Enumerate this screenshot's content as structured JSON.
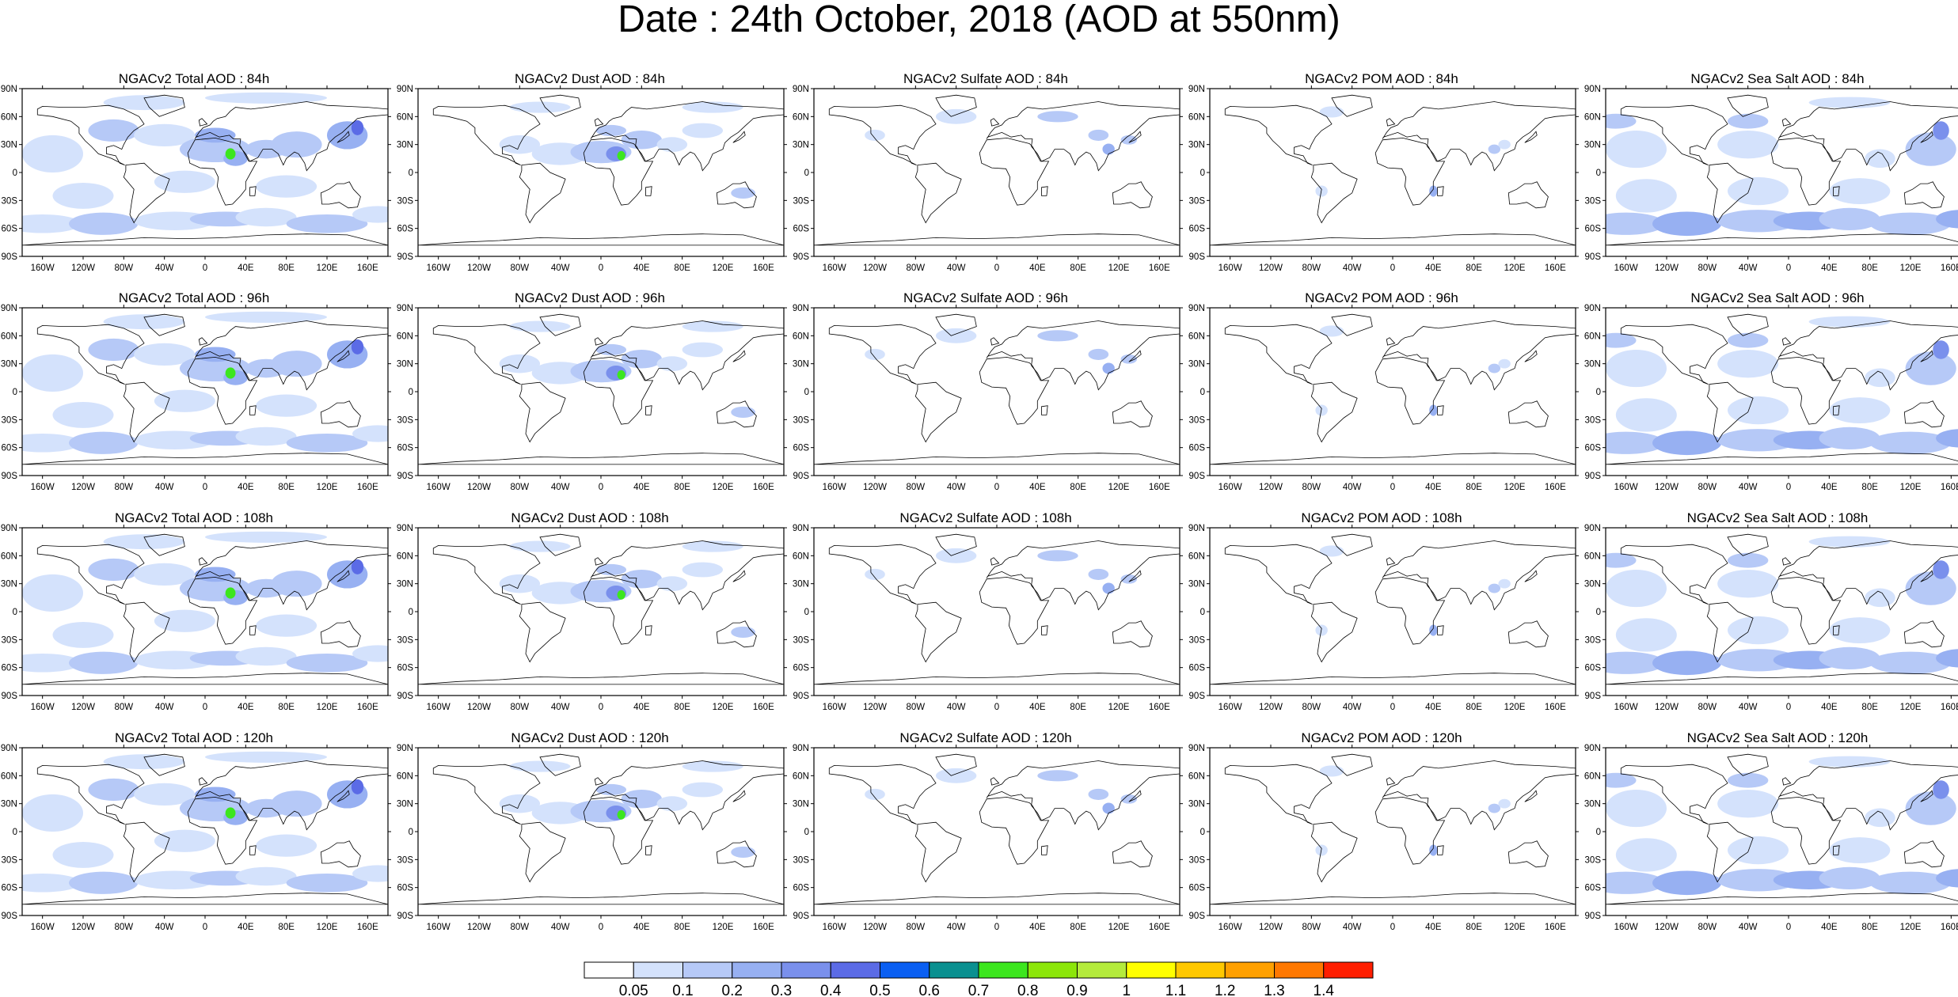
{
  "title": "Date : 24th October, 2018 (AOD at 550nm)",
  "map_axes": {
    "lat_ticks": [
      "90N",
      "60N",
      "30N",
      "0",
      "30S",
      "60S",
      "90S"
    ],
    "lon_ticks": [
      "160W",
      "120W",
      "80W",
      "40W",
      "0",
      "40E",
      "80E",
      "120E",
      "160E"
    ]
  },
  "panels": [
    {
      "title": "NGACv2 Total AOD : 84h",
      "species": "total",
      "forecast_hour": 84
    },
    {
      "title": "NGACv2 Dust AOD : 84h",
      "species": "dust",
      "forecast_hour": 84
    },
    {
      "title": "NGACv2 Sulfate AOD : 84h",
      "species": "sulfate",
      "forecast_hour": 84
    },
    {
      "title": "NGACv2 POM AOD : 84h",
      "species": "pom",
      "forecast_hour": 84
    },
    {
      "title": "NGACv2 Sea Salt AOD : 84h",
      "species": "seasalt",
      "forecast_hour": 84
    },
    {
      "title": "NGACv2 Total AOD : 96h",
      "species": "total",
      "forecast_hour": 96
    },
    {
      "title": "NGACv2 Dust AOD : 96h",
      "species": "dust",
      "forecast_hour": 96
    },
    {
      "title": "NGACv2 Sulfate AOD : 96h",
      "species": "sulfate",
      "forecast_hour": 96
    },
    {
      "title": "NGACv2 POM AOD : 96h",
      "species": "pom",
      "forecast_hour": 96
    },
    {
      "title": "NGACv2 Sea Salt AOD : 96h",
      "species": "seasalt",
      "forecast_hour": 96
    },
    {
      "title": "NGACv2 Total AOD : 108h",
      "species": "total",
      "forecast_hour": 108
    },
    {
      "title": "NGACv2 Dust AOD : 108h",
      "species": "dust",
      "forecast_hour": 108
    },
    {
      "title": "NGACv2 Sulfate AOD : 108h",
      "species": "sulfate",
      "forecast_hour": 108
    },
    {
      "title": "NGACv2 POM AOD : 108h",
      "species": "pom",
      "forecast_hour": 108
    },
    {
      "title": "NGACv2 Sea Salt AOD : 108h",
      "species": "seasalt",
      "forecast_hour": 108
    },
    {
      "title": "NGACv2 Total AOD : 120h",
      "species": "total",
      "forecast_hour": 120
    },
    {
      "title": "NGACv2 Dust AOD : 120h",
      "species": "dust",
      "forecast_hour": 120
    },
    {
      "title": "NGACv2 Sulfate AOD : 120h",
      "species": "sulfate",
      "forecast_hour": 120
    },
    {
      "title": "NGACv2 POM AOD : 120h",
      "species": "pom",
      "forecast_hour": 120
    },
    {
      "title": "NGACv2 Sea Salt  AOD : 120h",
      "species": "seasalt",
      "forecast_hour": 120
    }
  ],
  "colorbar": {
    "labels": [
      "0.05",
      "0.1",
      "0.2",
      "0.3",
      "0.4",
      "0.5",
      "0.6",
      "0.7",
      "0.8",
      "0.9",
      "1",
      "1.1",
      "1.2",
      "1.3",
      "1.4"
    ],
    "colors": [
      "#ffffff",
      "#d4e2fc",
      "#b6c9f7",
      "#97b0f2",
      "#7a90ec",
      "#5b6be6",
      "#0a5ff2",
      "#0a9090",
      "#3ce61e",
      "#8ce60a",
      "#b4eb3c",
      "#ffff00",
      "#ffc800",
      "#ffa000",
      "#ff7800",
      "#ff1e00"
    ]
  }
}
